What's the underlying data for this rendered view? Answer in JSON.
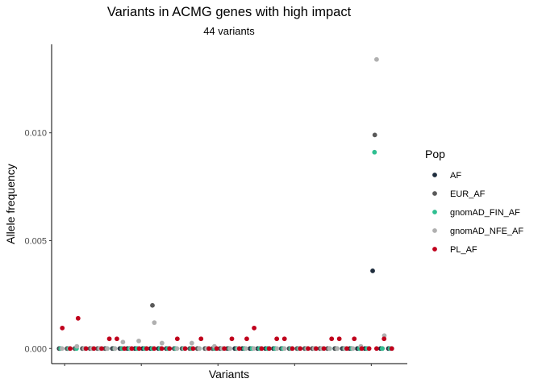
{
  "chart_data": {
    "type": "scatter",
    "title": "Variants in ACMG genes with high impact",
    "subtitle": "44 variants",
    "xlabel": "Variants",
    "ylabel": "Allele frequency",
    "ylim": [
      -0.0007,
      0.0141
    ],
    "yticks": [
      0.0,
      0.005,
      0.01
    ],
    "ytick_labels": [
      "0.000",
      "0.005",
      "0.010"
    ],
    "xlim": [
      -1.2,
      45.2
    ],
    "xticks": [
      0.5,
      10.5,
      20.5,
      30.5,
      40.5
    ],
    "grid": false,
    "legend_title": "Pop",
    "legend_position": "right",
    "series": [
      {
        "name": "AF",
        "color": "#1f2d3d",
        "values": [
          0,
          0,
          0,
          0,
          0,
          0,
          0,
          0,
          0,
          0,
          0,
          0,
          0,
          0,
          0,
          0,
          0,
          0,
          0,
          0,
          0,
          0,
          0,
          0,
          0,
          0,
          0,
          0,
          0,
          0,
          0,
          0,
          0,
          0,
          0,
          0,
          0,
          0,
          0,
          0,
          0,
          0.0036,
          0,
          0
        ]
      },
      {
        "name": "EUR_AF",
        "color": "#595959",
        "values": [
          0,
          0,
          0,
          0,
          0,
          0,
          0,
          0,
          0,
          0,
          0,
          0,
          0.002,
          0,
          0,
          0,
          0,
          0,
          0,
          0,
          0,
          0,
          0,
          0,
          0,
          0,
          0,
          0,
          0,
          0,
          0,
          0,
          0,
          0,
          0,
          0,
          0,
          0,
          0,
          0,
          0,
          0.0099,
          0,
          0
        ]
      },
      {
        "name": "gnomAD_FIN_AF",
        "color": "#2fbf91",
        "values": [
          0,
          0,
          0,
          0,
          0,
          0,
          0,
          0,
          0,
          0,
          0,
          0,
          0,
          0,
          0,
          0,
          0,
          0,
          0,
          0,
          0,
          0,
          0,
          0,
          0,
          0,
          0,
          0,
          0,
          0,
          0,
          0,
          0,
          0,
          0,
          0,
          0,
          0,
          0,
          0,
          0,
          0.0091,
          0,
          0
        ]
      },
      {
        "name": "gnomAD_NFE_AF",
        "color": "#b0b0b0",
        "values": [
          0,
          0,
          0.0001,
          0,
          0,
          0,
          0,
          0,
          0.0003,
          0,
          0.00035,
          0,
          0.0012,
          0.00025,
          0,
          0,
          0,
          0.00025,
          0,
          0,
          0.0001,
          0,
          0,
          0,
          0,
          0,
          0,
          0,
          0,
          0,
          0,
          0,
          0,
          0,
          0,
          0,
          0,
          0,
          0,
          0.0001,
          0,
          0.0134,
          0.0006,
          0
        ]
      },
      {
        "name": "PL_AF",
        "color": "#c0001c",
        "values": [
          0.00095,
          0,
          0.0014,
          0,
          0,
          0,
          0.00045,
          0.00045,
          0,
          0,
          0,
          0,
          0,
          0,
          0,
          0.00045,
          0,
          0,
          0.00045,
          0,
          0,
          0,
          0.00045,
          0,
          0.00045,
          0.00095,
          0,
          0,
          0.00045,
          0.00045,
          0,
          0,
          0,
          0,
          0,
          0.00045,
          0.00045,
          0,
          0.00045,
          0,
          0,
          0,
          0.00045,
          0
        ]
      }
    ]
  }
}
